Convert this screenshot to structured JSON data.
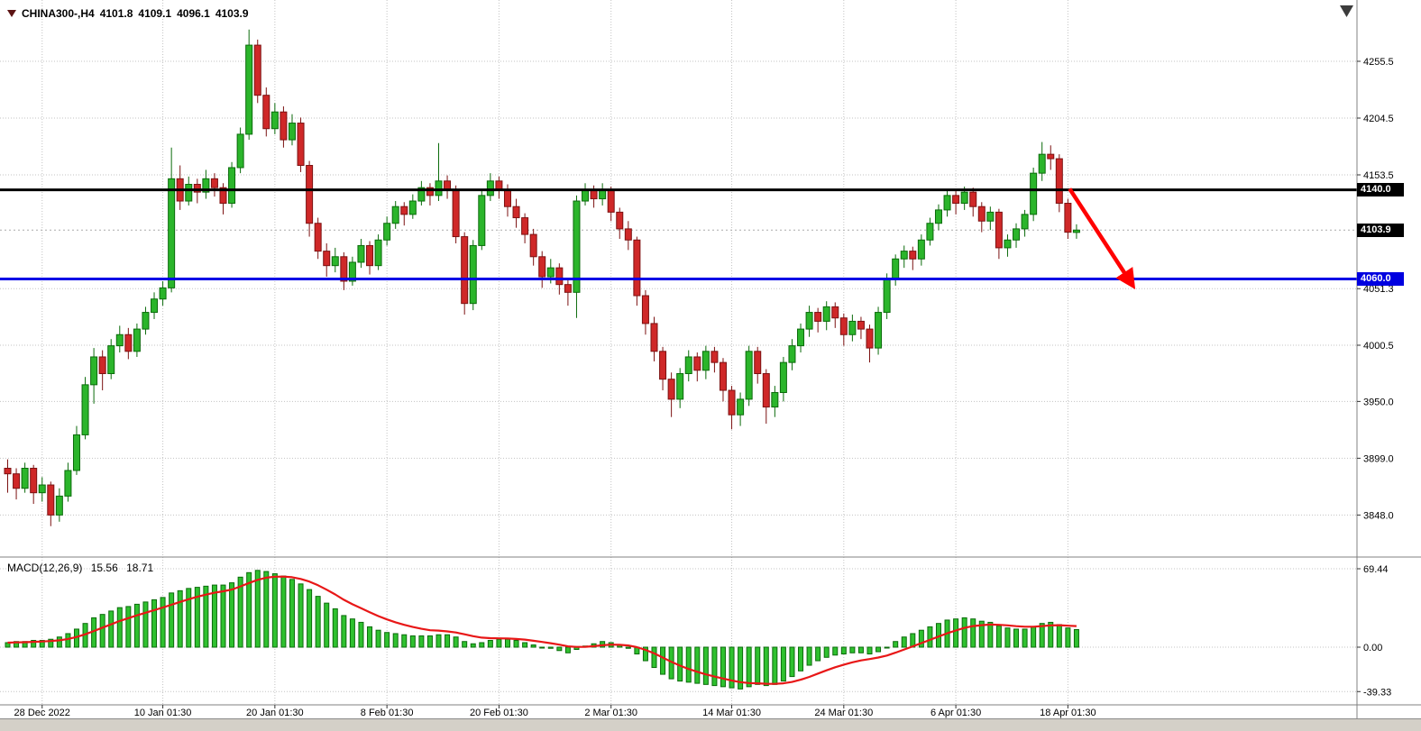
{
  "header": {
    "symbol_tf": "CHINA300-,H4",
    "open": "4101.8",
    "high": "4109.1",
    "low": "4096.1",
    "close": "4103.9"
  },
  "macd_label": {
    "name": "MACD(12,26,9)",
    "main": "15.56",
    "signal": "18.71"
  },
  "price_axis": {
    "badges": [
      {
        "label": "4140.0",
        "value": 4140.0,
        "bg": "#000000"
      },
      {
        "label": "4103.9",
        "value": 4103.9,
        "bg": "#000000"
      },
      {
        "label": "4060.0",
        "value": 4060.0,
        "bg": "#0000e0"
      }
    ]
  },
  "colors": {
    "up": "#2bb52b",
    "up_edge": "#0b6b0b",
    "down": "#cf2828",
    "down_edge": "#7c1212",
    "grid": "#c3c3c3",
    "border": "#808080",
    "resistance": "#000000",
    "support": "#0000e6",
    "arrow": "#ff0000",
    "macd_bar": "#2fc12f",
    "macd_bar_edge": "#0b6b0b",
    "signal": "#e81717",
    "axis_text": "#000000",
    "shift_marker": "#3c3c3c"
  },
  "chart_data": [
    {
      "type": "candlestick",
      "title": "CHINA300-,H4",
      "timeframe": "H4",
      "ylim": [
        3830,
        4300
      ],
      "y_ticks": [
        {
          "label": "4255.5",
          "value": 4255.5
        },
        {
          "label": "4204.5",
          "value": 4204.5
        },
        {
          "label": "4153.5",
          "value": 4153.5
        },
        {
          "label": "4051.3",
          "value": 4051.3
        },
        {
          "label": "4000.5",
          "value": 4000.5
        },
        {
          "label": "3950.0",
          "value": 3950.0
        },
        {
          "label": "3899.0",
          "value": 3899.0
        },
        {
          "label": "3848.0",
          "value": 3848.0
        }
      ],
      "x_ticks": [
        {
          "label": "28 Dec 2022",
          "index": 4
        },
        {
          "label": "10 Jan 01:30",
          "index": 18
        },
        {
          "label": "20 Jan 01:30",
          "index": 31
        },
        {
          "label": "8 Feb 01:30",
          "index": 44
        },
        {
          "label": "20 Feb 01:30",
          "index": 57
        },
        {
          "label": "2 Mar 01:30",
          "index": 70
        },
        {
          "label": "14 Mar 01:30",
          "index": 84
        },
        {
          "label": "24 Mar 01:30",
          "index": 97
        },
        {
          "label": "6 Apr 01:30",
          "index": 110
        },
        {
          "label": "18 Apr 01:30",
          "index": 123
        }
      ],
      "hlines": [
        {
          "price": 4140.0,
          "color": "#000000",
          "width": 3,
          "name": "resistance-line"
        },
        {
          "price": 4060.0,
          "color": "#0000e6",
          "width": 3,
          "name": "support-line"
        }
      ],
      "last_price": 4103.9,
      "arrow": {
        "from": {
          "index": 123.2,
          "price": 4141
        },
        "to": {
          "index": 130.2,
          "price": 4058
        },
        "color": "#ff0000"
      },
      "ohlc": [
        [
          3890,
          3898,
          3868,
          3885
        ],
        [
          3885,
          3890,
          3862,
          3872
        ],
        [
          3872,
          3895,
          3868,
          3890
        ],
        [
          3890,
          3893,
          3858,
          3868
        ],
        [
          3868,
          3882,
          3860,
          3875
        ],
        [
          3875,
          3878,
          3838,
          3848
        ],
        [
          3848,
          3872,
          3842,
          3865
        ],
        [
          3865,
          3895,
          3860,
          3888
        ],
        [
          3888,
          3928,
          3884,
          3920
        ],
        [
          3920,
          3972,
          3916,
          3965
        ],
        [
          3965,
          3998,
          3948,
          3990
        ],
        [
          3990,
          3996,
          3960,
          3975
        ],
        [
          3975,
          4006,
          3970,
          4000
        ],
        [
          4000,
          4018,
          3994,
          4010
        ],
        [
          4010,
          4016,
          3988,
          3995
        ],
        [
          3995,
          4020,
          3990,
          4015
        ],
        [
          4015,
          4035,
          4010,
          4030
        ],
        [
          4030,
          4048,
          4024,
          4042
        ],
        [
          4042,
          4058,
          4036,
          4052
        ],
        [
          4052,
          4178,
          4048,
          4150
        ],
        [
          4150,
          4162,
          4122,
          4130
        ],
        [
          4130,
          4152,
          4126,
          4145
        ],
        [
          4145,
          4150,
          4128,
          4138
        ],
        [
          4138,
          4158,
          4132,
          4150
        ],
        [
          4150,
          4155,
          4134,
          4142
        ],
        [
          4142,
          4146,
          4118,
          4128
        ],
        [
          4128,
          4165,
          4124,
          4160
        ],
        [
          4160,
          4196,
          4155,
          4190
        ],
        [
          4190,
          4284,
          4185,
          4270
        ],
        [
          4270,
          4275,
          4218,
          4225
        ],
        [
          4225,
          4232,
          4188,
          4195
        ],
        [
          4195,
          4218,
          4190,
          4210
        ],
        [
          4210,
          4215,
          4178,
          4185
        ],
        [
          4185,
          4208,
          4180,
          4200
        ],
        [
          4200,
          4205,
          4156,
          4162
        ],
        [
          4162,
          4166,
          4098,
          4110
        ],
        [
          4110,
          4115,
          4078,
          4085
        ],
        [
          4085,
          4092,
          4062,
          4072
        ],
        [
          4072,
          4088,
          4066,
          4080
        ],
        [
          4080,
          4084,
          4050,
          4058
        ],
        [
          4058,
          4080,
          4054,
          4075
        ],
        [
          4075,
          4096,
          4070,
          4090
        ],
        [
          4090,
          4094,
          4064,
          4072
        ],
        [
          4072,
          4100,
          4068,
          4095
        ],
        [
          4095,
          4116,
          4090,
          4110
        ],
        [
          4110,
          4130,
          4105,
          4125
        ],
        [
          4125,
          4129,
          4108,
          4118
        ],
        [
          4118,
          4136,
          4114,
          4130
        ],
        [
          4130,
          4148,
          4126,
          4142
        ],
        [
          4142,
          4146,
          4126,
          4135
        ],
        [
          4135,
          4182,
          4130,
          4148
        ],
        [
          4148,
          4153,
          4132,
          4140
        ],
        [
          4140,
          4144,
          4092,
          4098
        ],
        [
          4098,
          4102,
          4028,
          4038
        ],
        [
          4038,
          4095,
          4032,
          4090
        ],
        [
          4090,
          4140,
          4086,
          4135
        ],
        [
          4135,
          4155,
          4130,
          4148
        ],
        [
          4148,
          4152,
          4132,
          4140
        ],
        [
          4140,
          4145,
          4116,
          4125
        ],
        [
          4125,
          4132,
          4106,
          4115
        ],
        [
          4115,
          4119,
          4092,
          4100
        ],
        [
          4100,
          4105,
          4072,
          4080
        ],
        [
          4080,
          4085,
          4052,
          4062
        ],
        [
          4062,
          4078,
          4056,
          4070
        ],
        [
          4070,
          4074,
          4046,
          4055
        ],
        [
          4055,
          4060,
          4036,
          4048
        ],
        [
          4048,
          4135,
          4025,
          4130
        ],
        [
          4130,
          4146,
          4126,
          4140
        ],
        [
          4140,
          4144,
          4124,
          4132
        ],
        [
          4132,
          4146,
          4126,
          4140
        ],
        [
          4140,
          4143,
          4112,
          4120
        ],
        [
          4120,
          4124,
          4096,
          4105
        ],
        [
          4105,
          4112,
          4086,
          4095
        ],
        [
          4095,
          4098,
          4036,
          4045
        ],
        [
          4045,
          4050,
          4010,
          4020
        ],
        [
          4020,
          4026,
          3986,
          3995
        ],
        [
          3995,
          3999,
          3960,
          3970
        ],
        [
          3970,
          3976,
          3936,
          3952
        ],
        [
          3952,
          3980,
          3944,
          3975
        ],
        [
          3975,
          3996,
          3968,
          3990
        ],
        [
          3990,
          3994,
          3968,
          3978
        ],
        [
          3978,
          4000,
          3970,
          3995
        ],
        [
          3995,
          3999,
          3976,
          3985
        ],
        [
          3985,
          3989,
          3950,
          3960
        ],
        [
          3960,
          3964,
          3925,
          3938
        ],
        [
          3938,
          3958,
          3928,
          3952
        ],
        [
          3952,
          4000,
          3946,
          3995
        ],
        [
          3995,
          3999,
          3966,
          3975
        ],
        [
          3975,
          3979,
          3930,
          3945
        ],
        [
          3945,
          3964,
          3936,
          3958
        ],
        [
          3958,
          3990,
          3950,
          3985
        ],
        [
          3985,
          4006,
          3978,
          4000
        ],
        [
          4000,
          4020,
          3994,
          4015
        ],
        [
          4015,
          4036,
          4008,
          4030
        ],
        [
          4030,
          4034,
          4012,
          4022
        ],
        [
          4022,
          4040,
          4014,
          4035
        ],
        [
          4035,
          4039,
          4016,
          4025
        ],
        [
          4025,
          4029,
          4000,
          4010
        ],
        [
          4010,
          4028,
          4004,
          4022
        ],
        [
          4022,
          4026,
          4006,
          4015
        ],
        [
          4015,
          4019,
          3985,
          3998
        ],
        [
          3998,
          4035,
          3992,
          4030
        ],
        [
          4030,
          4065,
          4024,
          4060
        ],
        [
          4060,
          4082,
          4054,
          4078
        ],
        [
          4078,
          4090,
          4070,
          4085
        ],
        [
          4085,
          4089,
          4068,
          4078
        ],
        [
          4078,
          4100,
          4072,
          4095
        ],
        [
          4095,
          4115,
          4090,
          4110
        ],
        [
          4110,
          4127,
          4104,
          4122
        ],
        [
          4122,
          4140,
          4116,
          4135
        ],
        [
          4135,
          4139,
          4118,
          4128
        ],
        [
          4128,
          4143,
          4122,
          4138
        ],
        [
          4138,
          4142,
          4116,
          4125
        ],
        [
          4125,
          4129,
          4102,
          4112
        ],
        [
          4112,
          4125,
          4104,
          4120
        ],
        [
          4120,
          4123,
          4078,
          4088
        ],
        [
          4088,
          4100,
          4080,
          4095
        ],
        [
          4095,
          4110,
          4088,
          4105
        ],
        [
          4105,
          4122,
          4098,
          4118
        ],
        [
          4118,
          4160,
          4112,
          4155
        ],
        [
          4155,
          4183,
          4148,
          4172
        ],
        [
          4172,
          4180,
          4158,
          4168
        ],
        [
          4168,
          4172,
          4120,
          4128
        ],
        [
          4128,
          4132,
          4096,
          4102
        ],
        [
          4101.8,
          4109.1,
          4096.1,
          4103.9
        ]
      ]
    },
    {
      "type": "bar+line",
      "name": "MACD(12,26,9)",
      "params": [
        12,
        26,
        9
      ],
      "current_macd": 15.56,
      "current_signal": 18.71,
      "y_ticks": [
        {
          "label": "69.44",
          "value": 69.44
        },
        {
          "label": "0.00",
          "value": 0.0
        },
        {
          "label": "-39.33",
          "value": -39.33
        }
      ],
      "histogram": [
        4,
        5,
        5,
        6,
        6,
        7,
        9,
        12,
        16,
        21,
        26,
        29,
        32,
        35,
        36,
        38,
        40,
        42,
        44,
        48,
        50,
        52,
        53,
        54,
        55,
        55,
        57,
        62,
        66,
        68,
        67,
        65,
        63,
        60,
        56,
        51,
        45,
        39,
        34,
        28,
        25,
        22,
        18,
        15,
        13,
        12,
        11,
        10,
        10,
        10,
        11,
        11,
        9,
        5,
        3,
        4,
        6,
        7,
        7,
        6,
        4,
        2,
        0,
        -1,
        -3,
        -5,
        -2,
        1,
        3,
        5,
        4,
        2,
        -1,
        -6,
        -12,
        -18,
        -24,
        -28,
        -30,
        -31,
        -32,
        -33,
        -34,
        -35,
        -36,
        -37,
        -35,
        -33,
        -34,
        -33,
        -30,
        -26,
        -21,
        -16,
        -12,
        -9,
        -7,
        -6,
        -5,
        -5,
        -6,
        -4,
        0,
        5,
        9,
        12,
        15,
        18,
        21,
        24,
        25,
        26,
        25,
        23,
        22,
        19,
        17,
        16,
        16,
        18,
        21,
        22,
        20,
        17,
        15.56
      ],
      "signal": [
        4,
        4.2,
        4.4,
        4.7,
        5,
        5.4,
        6.1,
        7.3,
        9,
        11.4,
        14.3,
        17.3,
        20.2,
        23.2,
        25.7,
        28.2,
        30.5,
        32.8,
        35.1,
        37.6,
        40.1,
        42.5,
        44.6,
        46.5,
        48.2,
        49.5,
        51,
        53.8,
        56.8,
        59.6,
        61.5,
        62.4,
        62.5,
        61.9,
        60.4,
        58.1,
        54.8,
        50.9,
        46.7,
        42,
        38,
        34.5,
        31,
        27.5,
        24.6,
        22,
        19.8,
        17.9,
        16.3,
        15,
        14.7,
        14,
        13,
        11.4,
        9.7,
        8.5,
        8,
        7.8,
        7.7,
        7.3,
        6.7,
        5.7,
        4.6,
        3.5,
        2.2,
        0.7,
        0.2,
        0.3,
        0.9,
        1.7,
        2.2,
        2.1,
        1.5,
        0,
        -2.4,
        -5.5,
        -9.2,
        -13,
        -16.4,
        -19.3,
        -21.8,
        -24.1,
        -26,
        -27.8,
        -29.5,
        -31,
        -31.8,
        -32,
        -32.4,
        -32.5,
        -32,
        -30.8,
        -28.8,
        -26.3,
        -23.4,
        -20.5,
        -17.8,
        -15.5,
        -13.4,
        -11.7,
        -10.5,
        -9.2,
        -7.4,
        -4.9,
        -2.1,
        0.7,
        3.6,
        6.5,
        9.4,
        12.3,
        14.8,
        17.1,
        18.7,
        19.5,
        20,
        19.8,
        19.3,
        18.6,
        18.1,
        18.1,
        18.7,
        19.3,
        19.5,
        19,
        18.71
      ]
    }
  ]
}
